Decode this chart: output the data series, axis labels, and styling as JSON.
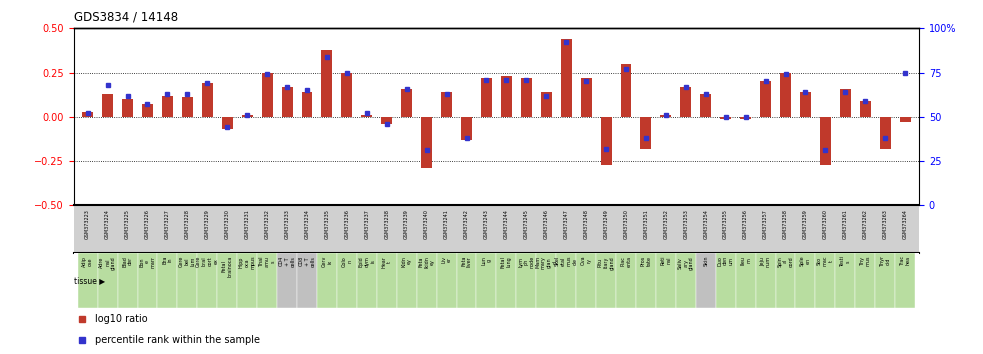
{
  "title": "GDS3834 / 14148",
  "gsm_labels": [
    "GSM373223",
    "GSM373224",
    "GSM373225",
    "GSM373226",
    "GSM373227",
    "GSM373228",
    "GSM373229",
    "GSM373230",
    "GSM373231",
    "GSM373232",
    "GSM373233",
    "GSM373234",
    "GSM373235",
    "GSM373236",
    "GSM373237",
    "GSM373238",
    "GSM373239",
    "GSM373240",
    "GSM373241",
    "GSM373242",
    "GSM373243",
    "GSM373244",
    "GSM373245",
    "GSM373246",
    "GSM373247",
    "GSM373248",
    "GSM373249",
    "GSM373250",
    "GSM373251",
    "GSM373252",
    "GSM373253",
    "GSM373254",
    "GSM373255",
    "GSM373256",
    "GSM373257",
    "GSM373258",
    "GSM373259",
    "GSM373260",
    "GSM373261",
    "GSM373262",
    "GSM373263",
    "GSM373264"
  ],
  "tissue_labels": [
    "Adip\nose",
    "Adre\nnal\ngland",
    "Blad\nder",
    "Bon\ne\nmarr",
    "Bra\nin",
    "Cere\nbel\nlum",
    "Cere\nbral\ncort\nex",
    "Fetal\nbrainoca",
    "Hipp\noca\nmpus",
    "Thal\namu\ns",
    "CD4\n+ T\ncells",
    "CD8\n+ T\ncells",
    "Cerv\nix",
    "Colo\nn",
    "Epid\ndym\nis",
    "Hear\nt",
    "Kidn\ney",
    "Feta\nlkidn\ney",
    "Liv\ner",
    "Feta\nliver",
    "Lun\ng",
    "Fetal\nlung",
    "Lym\nph\nnode",
    "Mam\nmary\nglan\nd",
    "Skel\netal\nmus\ncle",
    "Ova\nry",
    "Pitu\nitary\ngland",
    "Plac\nenta",
    "Pros\ntate",
    "Reti\nnal",
    "Saliv\nary\ngland",
    "Skin",
    "Duo\nden\num",
    "Ileu\nm",
    "Jeju\nnum",
    "Spin\nal\ncord",
    "Sple\nen",
    "Sto\nmac\nt",
    "Testi\ns",
    "Thy\nmus",
    "Thyr\noid",
    "Trac\nhea"
  ],
  "log10_ratio": [
    0.03,
    0.13,
    0.1,
    0.07,
    0.12,
    0.11,
    0.19,
    -0.07,
    0.01,
    0.25,
    0.17,
    0.14,
    0.38,
    0.25,
    0.01,
    -0.04,
    0.16,
    -0.29,
    0.14,
    -0.13,
    0.22,
    0.23,
    0.22,
    0.14,
    0.44,
    0.22,
    -0.27,
    0.3,
    -0.18,
    0.01,
    0.17,
    0.13,
    -0.01,
    -0.01,
    0.2,
    0.25,
    0.14,
    -0.27,
    0.16,
    0.09,
    -0.18,
    -0.03
  ],
  "percentile": [
    52,
    68,
    62,
    57,
    63,
    63,
    69,
    44,
    51,
    74,
    67,
    65,
    84,
    75,
    52,
    46,
    66,
    31,
    63,
    38,
    71,
    71,
    71,
    62,
    92,
    70,
    32,
    77,
    38,
    51,
    67,
    63,
    50,
    50,
    70,
    74,
    64,
    31,
    64,
    59,
    38,
    75
  ],
  "tissue_colors": [
    "#b8dda0",
    "#b8dda0",
    "#b8dda0",
    "#b8dda0",
    "#b8dda0",
    "#b8dda0",
    "#b8dda0",
    "#b8dda0",
    "#b8dda0",
    "#b8dda0",
    "#c0c0c0",
    "#c0c0c0",
    "#b8dda0",
    "#b8dda0",
    "#b8dda0",
    "#b8dda0",
    "#b8dda0",
    "#b8dda0",
    "#b8dda0",
    "#b8dda0",
    "#b8dda0",
    "#b8dda0",
    "#b8dda0",
    "#b8dda0",
    "#b8dda0",
    "#b8dda0",
    "#b8dda0",
    "#b8dda0",
    "#b8dda0",
    "#b8dda0",
    "#b8dda0",
    "#c0c0c0",
    "#b8dda0",
    "#b8dda0",
    "#b8dda0",
    "#b8dda0",
    "#b8dda0",
    "#b8dda0",
    "#b8dda0",
    "#b8dda0",
    "#b8dda0",
    "#b8dda0"
  ],
  "bar_color": "#c0392b",
  "dot_color": "#3333cc",
  "ylim": [
    -0.5,
    0.5
  ],
  "y2lim": [
    0,
    100
  ],
  "hline_values": [
    0.25,
    0.0,
    -0.25
  ],
  "yticks_left": [
    -0.5,
    -0.25,
    0.0,
    0.25,
    0.5
  ],
  "yticks_right": [
    0,
    25,
    50,
    75,
    100
  ],
  "legend_bar": "log10 ratio",
  "legend_dot": "percentile rank within the sample",
  "background_color": "#ffffff",
  "gsm_row_color": "#d0d0d0",
  "tissue_arrow_label": "tissue"
}
